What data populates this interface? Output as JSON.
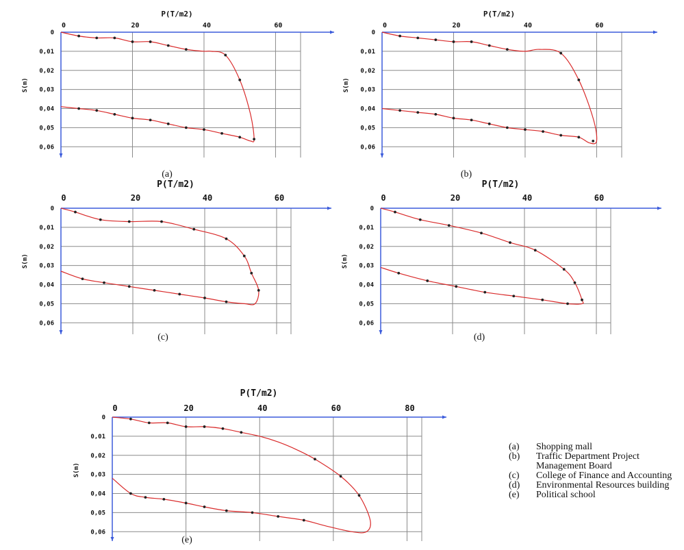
{
  "chart_data": [
    {
      "id": "a",
      "type": "line",
      "panel_label": "(a)",
      "xlabel": "P(T/m2)",
      "ylabel": "S(m)",
      "x_ticks": [
        "0",
        "20",
        "40",
        "60"
      ],
      "y_ticks": [
        "0",
        "0,01",
        "0,02",
        "0,03",
        "0,04",
        "0,05",
        "0,06"
      ],
      "xlim": [
        0,
        67
      ],
      "ylim": [
        0,
        0.066
      ],
      "grid": true,
      "series": [
        {
          "x": [
            0,
            5,
            10,
            15,
            20,
            25,
            30,
            35,
            40,
            42,
            46,
            50,
            53,
            54,
            53,
            50,
            45,
            40,
            35,
            30,
            25,
            20,
            15,
            10,
            5,
            0
          ],
          "y": [
            0,
            0.002,
            0.003,
            0.003,
            0.005,
            0.005,
            0.007,
            0.009,
            0.01,
            0.01,
            0.012,
            0.025,
            0.043,
            0.056,
            0.057,
            0.055,
            0.053,
            0.051,
            0.05,
            0.048,
            0.046,
            0.045,
            0.043,
            0.041,
            0.04,
            0.039
          ],
          "markers_x": [
            5,
            10,
            15,
            20,
            25,
            30,
            35,
            46,
            50,
            54,
            50,
            45,
            40,
            35,
            30,
            25,
            20,
            15,
            10,
            5
          ],
          "markers_y": [
            0.002,
            0.003,
            0.003,
            0.005,
            0.005,
            0.007,
            0.009,
            0.012,
            0.025,
            0.056,
            0.055,
            0.053,
            0.051,
            0.05,
            0.048,
            0.046,
            0.045,
            0.043,
            0.041,
            0.04
          ]
        }
      ]
    },
    {
      "id": "b",
      "type": "line",
      "panel_label": "(b)",
      "xlabel": "P(T/m2)",
      "ylabel": "S(m)",
      "x_ticks": [
        "0",
        "20",
        "40",
        "60"
      ],
      "y_ticks": [
        "0",
        "0,01",
        "0,02",
        "0,03",
        "0,04",
        "0,05",
        "0,06"
      ],
      "xlim": [
        0,
        67
      ],
      "ylim": [
        0,
        0.066
      ],
      "grid": true,
      "series": [
        {
          "x": [
            0,
            5,
            10,
            15,
            20,
            25,
            30,
            35,
            40,
            44,
            50,
            55,
            59,
            60,
            58,
            55,
            50,
            45,
            40,
            35,
            30,
            25,
            20,
            15,
            10,
            5,
            0
          ],
          "y": [
            0,
            0.002,
            0.003,
            0.004,
            0.005,
            0.005,
            0.007,
            0.009,
            0.01,
            0.009,
            0.011,
            0.025,
            0.045,
            0.057,
            0.058,
            0.055,
            0.054,
            0.052,
            0.051,
            0.05,
            0.048,
            0.046,
            0.045,
            0.043,
            0.042,
            0.041,
            0.04
          ],
          "markers_x": [
            5,
            10,
            15,
            20,
            25,
            30,
            35,
            50,
            55,
            59,
            55,
            50,
            45,
            40,
            35,
            30,
            25,
            20,
            15,
            10,
            5
          ],
          "markers_y": [
            0.002,
            0.003,
            0.004,
            0.005,
            0.005,
            0.007,
            0.009,
            0.011,
            0.025,
            0.057,
            0.055,
            0.054,
            0.052,
            0.051,
            0.05,
            0.048,
            0.046,
            0.045,
            0.043,
            0.042,
            0.041
          ]
        }
      ]
    },
    {
      "id": "c",
      "type": "line",
      "panel_label": "(c)",
      "xlabel": "P(T/m2)",
      "ylabel": "S(m)",
      "x_ticks": [
        "0",
        "20",
        "40",
        "60"
      ],
      "y_ticks": [
        "0",
        "0,01",
        "0,02",
        "0,03",
        "0,04",
        "0,05",
        "0,06"
      ],
      "xlim": [
        0,
        64
      ],
      "ylim": [
        0,
        0.066
      ],
      "grid": true,
      "series": [
        {
          "x": [
            0,
            4,
            11,
            19,
            28,
            37,
            46,
            51,
            53,
            55,
            54,
            51,
            46,
            40,
            33,
            26,
            19,
            12,
            6,
            0
          ],
          "y": [
            0,
            0.002,
            0.006,
            0.007,
            0.007,
            0.011,
            0.016,
            0.025,
            0.034,
            0.043,
            0.05,
            0.05,
            0.049,
            0.047,
            0.045,
            0.043,
            0.041,
            0.039,
            0.037,
            0.033
          ],
          "markers_x": [
            4,
            11,
            19,
            28,
            37,
            46,
            51,
            53,
            55,
            46,
            40,
            33,
            26,
            19,
            12,
            6
          ],
          "markers_y": [
            0.002,
            0.006,
            0.007,
            0.007,
            0.011,
            0.016,
            0.025,
            0.034,
            0.043,
            0.049,
            0.047,
            0.045,
            0.043,
            0.041,
            0.039,
            0.037
          ]
        }
      ]
    },
    {
      "id": "d",
      "type": "line",
      "panel_label": "(d)",
      "xlabel": "P(T/m2)",
      "ylabel": "S(m)",
      "x_ticks": [
        "0",
        "20",
        "40",
        "60"
      ],
      "y_ticks": [
        "0",
        "0,01",
        "0,02",
        "0,03",
        "0,04",
        "0,05",
        "0,06"
      ],
      "xlim": [
        0,
        64
      ],
      "ylim": [
        0,
        0.066
      ],
      "grid": true,
      "series": [
        {
          "x": [
            0,
            4,
            11,
            19,
            28,
            36,
            43,
            51,
            54,
            56,
            56,
            52,
            45,
            37,
            29,
            21,
            13,
            5,
            0
          ],
          "y": [
            0,
            0.002,
            0.006,
            0.009,
            0.013,
            0.018,
            0.022,
            0.032,
            0.039,
            0.048,
            0.05,
            0.05,
            0.048,
            0.046,
            0.044,
            0.041,
            0.038,
            0.034,
            0.031
          ],
          "markers_x": [
            4,
            11,
            19,
            28,
            36,
            43,
            51,
            54,
            56,
            52,
            45,
            37,
            29,
            21,
            13,
            5
          ],
          "markers_y": [
            0.002,
            0.006,
            0.009,
            0.013,
            0.018,
            0.022,
            0.032,
            0.039,
            0.048,
            0.05,
            0.048,
            0.046,
            0.044,
            0.041,
            0.038,
            0.034
          ]
        }
      ]
    },
    {
      "id": "e",
      "type": "line",
      "panel_label": "(e)",
      "xlabel": "P(T/m2)",
      "ylabel": "S(m)",
      "x_ticks": [
        "0",
        "20",
        "40",
        "60",
        "80"
      ],
      "y_ticks": [
        "0",
        "0,01",
        "0,02",
        "0,03",
        "0,04",
        "0,05",
        "0,06"
      ],
      "xlim": [
        0,
        84
      ],
      "ylim": [
        0,
        0.066
      ],
      "grid": true,
      "series": [
        {
          "x": [
            0,
            5,
            10,
            15,
            20,
            25,
            30,
            35,
            40,
            45,
            50,
            55,
            62,
            67,
            70,
            69,
            65,
            58,
            52,
            45,
            38,
            31,
            25,
            20,
            14,
            9,
            5,
            0
          ],
          "y": [
            0,
            0.001,
            0.003,
            0.003,
            0.005,
            0.005,
            0.006,
            0.008,
            0.01,
            0.013,
            0.017,
            0.022,
            0.031,
            0.041,
            0.054,
            0.06,
            0.06,
            0.057,
            0.054,
            0.052,
            0.05,
            0.049,
            0.047,
            0.045,
            0.043,
            0.042,
            0.04,
            0.032
          ],
          "markers_x": [
            5,
            10,
            15,
            20,
            25,
            30,
            35,
            55,
            62,
            67,
            52,
            45,
            38,
            31,
            25,
            20,
            14,
            9,
            5
          ],
          "markers_y": [
            0.001,
            0.003,
            0.003,
            0.005,
            0.005,
            0.006,
            0.008,
            0.022,
            0.031,
            0.041,
            0.054,
            0.052,
            0.05,
            0.049,
            0.047,
            0.045,
            0.043,
            0.042,
            0.04
          ]
        }
      ]
    }
  ],
  "legend": {
    "items": [
      {
        "key": "(a)",
        "text": "Shopping mall"
      },
      {
        "key": "(b)",
        "text": "Traffic Department Project Management Board"
      },
      {
        "key": "(c)",
        "text": "College of Finance and Accounting"
      },
      {
        "key": "(d)",
        "text": "Environmental Resources building"
      },
      {
        "key": "(e)",
        "text": "Political school"
      }
    ]
  }
}
